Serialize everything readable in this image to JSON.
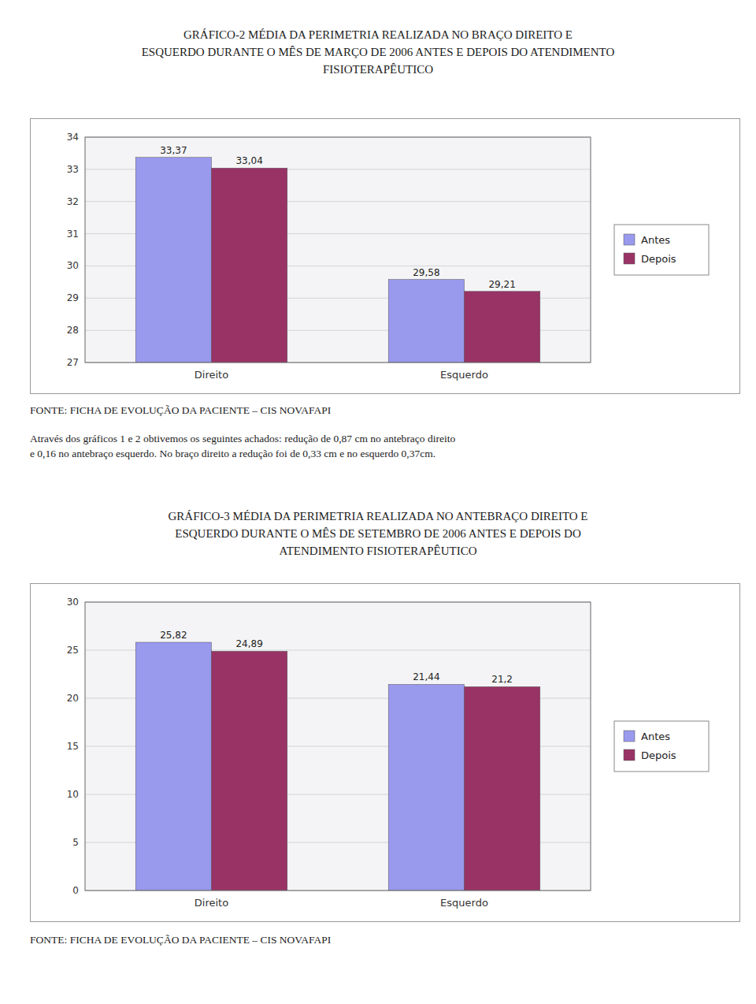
{
  "chart_data": [
    {
      "type": "bar",
      "title": "GRÁFICO-2 MÉDIA DA PERIMETRIA REALIZADA NO BRAÇO DIREITO E\nESQUERDO DURANTE O MÊS DE MARÇO DE 2006 ANTES E DEPOIS DO ATENDIMENTO\nFISIOTERAPÊUTICO",
      "categories": [
        "Direito",
        "Esquerdo"
      ],
      "series": [
        {
          "name": "Antes",
          "color": "#9999EE",
          "values": [
            33.37,
            29.58
          ],
          "value_labels": [
            "33,37",
            "29,58"
          ]
        },
        {
          "name": "Depois",
          "color": "#993366",
          "values": [
            33.04,
            29.21
          ],
          "value_labels": [
            "33,04",
            "29,21"
          ]
        }
      ],
      "ylim": [
        27,
        34
      ],
      "yticks": [
        27,
        28,
        29,
        30,
        31,
        32,
        33,
        34
      ],
      "grid": true,
      "legend": "right",
      "data_labels": true,
      "annotations": [
        "FONTE: FICHA DE EVOLUÇÃO DA PACIENTE – CIS NOVAFAPI",
        "Através dos gráficos 1 e 2 obtivemos os seguintes achados: redução de 0,87 cm no antebraço direito\ne 0,16 no antebraço esquerdo. No braço direito a redução foi de 0,33 cm e no esquerdo 0,37cm."
      ]
    },
    {
      "type": "bar",
      "title": "GRÁFICO-3 MÉDIA DA PERIMETRIA REALIZADA NO ANTEBRAÇO DIREITO E\nESQUERDO DURANTE O MÊS DE SETEMBRO DE 2006 ANTES E DEPOIS DO\nATENDIMENTO FISIOTERAPÊUTICO",
      "categories": [
        "Direito",
        "Esquerdo"
      ],
      "series": [
        {
          "name": "Antes",
          "color": "#9999EE",
          "values": [
            25.82,
            21.44
          ],
          "value_labels": [
            "25,82",
            "21,44"
          ]
        },
        {
          "name": "Depois",
          "color": "#993366",
          "values": [
            24.89,
            21.2
          ],
          "value_labels": [
            "24,89",
            "21,2"
          ]
        }
      ],
      "ylim": [
        0,
        30
      ],
      "yticks": [
        0,
        5,
        10,
        15,
        20,
        25,
        30
      ],
      "grid": true,
      "legend": "right",
      "data_labels": true,
      "annotations": [
        "FONTE: FICHA DE EVOLUÇÃO DA PACIENTE – CIS NOVAFAPI"
      ]
    }
  ]
}
